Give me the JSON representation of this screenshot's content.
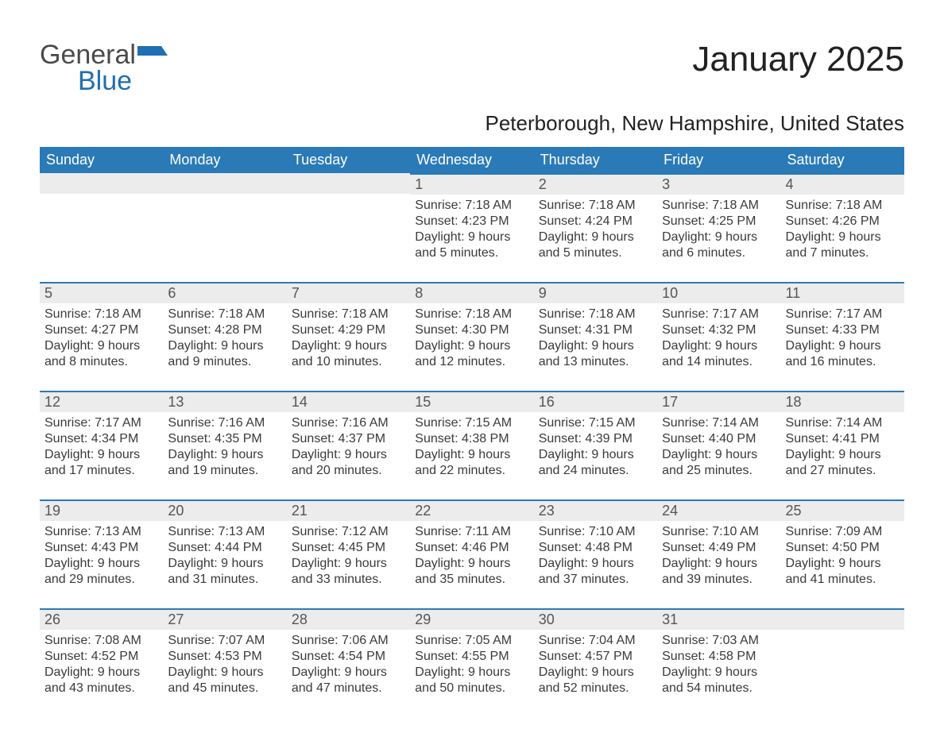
{
  "logo": {
    "word1": "General",
    "word2": "Blue",
    "iconColor": "#1f6fb2"
  },
  "title": "January 2025",
  "subtitle": "Peterborough, New Hampshire, United States",
  "colors": {
    "headerBg": "#2a7ab8",
    "headerText": "#ffffff",
    "dayHeadBg": "#ececec",
    "dayHeadBorder": "#2a7ab8",
    "bodyText": "#3a3a3a",
    "background": "#ffffff"
  },
  "weekdays": [
    "Sunday",
    "Monday",
    "Tuesday",
    "Wednesday",
    "Thursday",
    "Friday",
    "Saturday"
  ],
  "grid": [
    [
      null,
      null,
      null,
      {
        "n": "1",
        "sunrise": "7:18 AM",
        "sunset": "4:23 PM",
        "dh": "9",
        "dm": "5"
      },
      {
        "n": "2",
        "sunrise": "7:18 AM",
        "sunset": "4:24 PM",
        "dh": "9",
        "dm": "5"
      },
      {
        "n": "3",
        "sunrise": "7:18 AM",
        "sunset": "4:25 PM",
        "dh": "9",
        "dm": "6"
      },
      {
        "n": "4",
        "sunrise": "7:18 AM",
        "sunset": "4:26 PM",
        "dh": "9",
        "dm": "7"
      }
    ],
    [
      {
        "n": "5",
        "sunrise": "7:18 AM",
        "sunset": "4:27 PM",
        "dh": "9",
        "dm": "8"
      },
      {
        "n": "6",
        "sunrise": "7:18 AM",
        "sunset": "4:28 PM",
        "dh": "9",
        "dm": "9"
      },
      {
        "n": "7",
        "sunrise": "7:18 AM",
        "sunset": "4:29 PM",
        "dh": "9",
        "dm": "10"
      },
      {
        "n": "8",
        "sunrise": "7:18 AM",
        "sunset": "4:30 PM",
        "dh": "9",
        "dm": "12"
      },
      {
        "n": "9",
        "sunrise": "7:18 AM",
        "sunset": "4:31 PM",
        "dh": "9",
        "dm": "13"
      },
      {
        "n": "10",
        "sunrise": "7:17 AM",
        "sunset": "4:32 PM",
        "dh": "9",
        "dm": "14"
      },
      {
        "n": "11",
        "sunrise": "7:17 AM",
        "sunset": "4:33 PM",
        "dh": "9",
        "dm": "16"
      }
    ],
    [
      {
        "n": "12",
        "sunrise": "7:17 AM",
        "sunset": "4:34 PM",
        "dh": "9",
        "dm": "17"
      },
      {
        "n": "13",
        "sunrise": "7:16 AM",
        "sunset": "4:35 PM",
        "dh": "9",
        "dm": "19"
      },
      {
        "n": "14",
        "sunrise": "7:16 AM",
        "sunset": "4:37 PM",
        "dh": "9",
        "dm": "20"
      },
      {
        "n": "15",
        "sunrise": "7:15 AM",
        "sunset": "4:38 PM",
        "dh": "9",
        "dm": "22"
      },
      {
        "n": "16",
        "sunrise": "7:15 AM",
        "sunset": "4:39 PM",
        "dh": "9",
        "dm": "24"
      },
      {
        "n": "17",
        "sunrise": "7:14 AM",
        "sunset": "4:40 PM",
        "dh": "9",
        "dm": "25"
      },
      {
        "n": "18",
        "sunrise": "7:14 AM",
        "sunset": "4:41 PM",
        "dh": "9",
        "dm": "27"
      }
    ],
    [
      {
        "n": "19",
        "sunrise": "7:13 AM",
        "sunset": "4:43 PM",
        "dh": "9",
        "dm": "29"
      },
      {
        "n": "20",
        "sunrise": "7:13 AM",
        "sunset": "4:44 PM",
        "dh": "9",
        "dm": "31"
      },
      {
        "n": "21",
        "sunrise": "7:12 AM",
        "sunset": "4:45 PM",
        "dh": "9",
        "dm": "33"
      },
      {
        "n": "22",
        "sunrise": "7:11 AM",
        "sunset": "4:46 PM",
        "dh": "9",
        "dm": "35"
      },
      {
        "n": "23",
        "sunrise": "7:10 AM",
        "sunset": "4:48 PM",
        "dh": "9",
        "dm": "37"
      },
      {
        "n": "24",
        "sunrise": "7:10 AM",
        "sunset": "4:49 PM",
        "dh": "9",
        "dm": "39"
      },
      {
        "n": "25",
        "sunrise": "7:09 AM",
        "sunset": "4:50 PM",
        "dh": "9",
        "dm": "41"
      }
    ],
    [
      {
        "n": "26",
        "sunrise": "7:08 AM",
        "sunset": "4:52 PM",
        "dh": "9",
        "dm": "43"
      },
      {
        "n": "27",
        "sunrise": "7:07 AM",
        "sunset": "4:53 PM",
        "dh": "9",
        "dm": "45"
      },
      {
        "n": "28",
        "sunrise": "7:06 AM",
        "sunset": "4:54 PM",
        "dh": "9",
        "dm": "47"
      },
      {
        "n": "29",
        "sunrise": "7:05 AM",
        "sunset": "4:55 PM",
        "dh": "9",
        "dm": "50"
      },
      {
        "n": "30",
        "sunrise": "7:04 AM",
        "sunset": "4:57 PM",
        "dh": "9",
        "dm": "52"
      },
      {
        "n": "31",
        "sunrise": "7:03 AM",
        "sunset": "4:58 PM",
        "dh": "9",
        "dm": "54"
      },
      null
    ]
  ],
  "labels": {
    "sunrisePrefix": "Sunrise: ",
    "sunsetPrefix": "Sunset: ",
    "daylightPrefix": "Daylight: ",
    "hoursWord": " hours",
    "andWord": "and ",
    "minutesWord": " minutes."
  }
}
